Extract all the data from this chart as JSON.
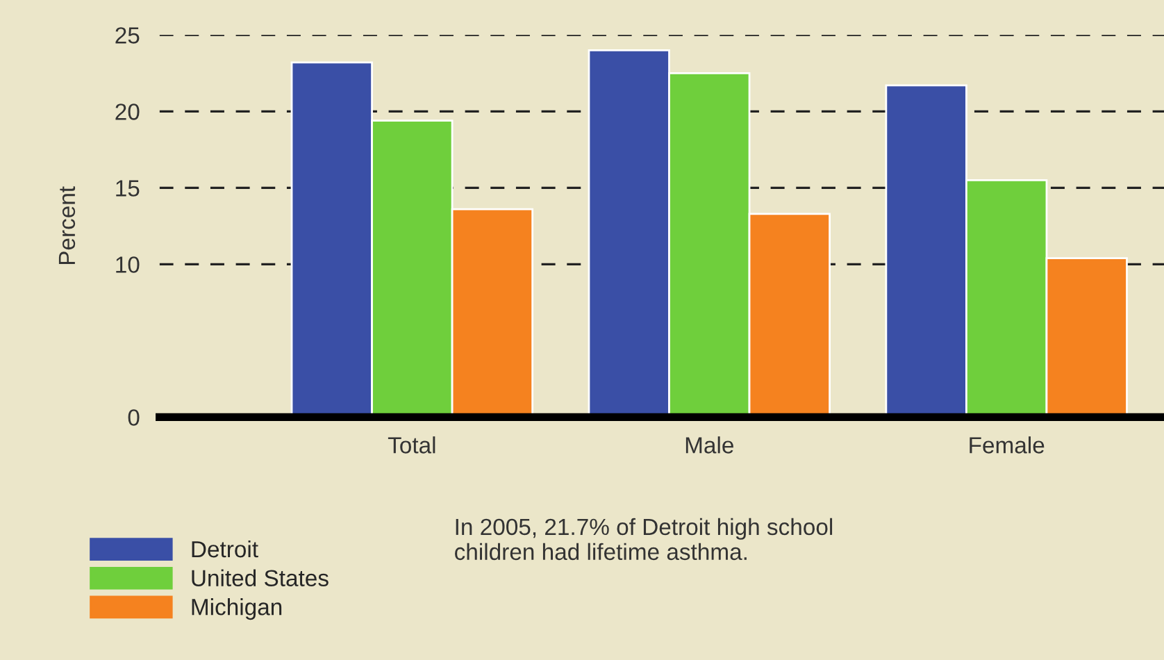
{
  "chart_data": {
    "type": "bar",
    "ylabel": "Percent",
    "categories": [
      "Total",
      "Male",
      "Female"
    ],
    "series": [
      {
        "name": "Detroit",
        "color": "#3a4fa6",
        "values": [
          23.2,
          24.0,
          21.7
        ]
      },
      {
        "name": "United States",
        "color": "#6fcf3c",
        "values": [
          19.4,
          22.5,
          15.5
        ]
      },
      {
        "name": "Michigan",
        "color": "#f5821f",
        "values": [
          13.6,
          13.3,
          10.4
        ]
      }
    ],
    "ylim": [
      0,
      25
    ],
    "yticks": [
      0,
      10,
      15,
      20,
      25
    ],
    "grid": "y",
    "legend": "bottom left",
    "annotations": [
      "In 2005, 21.7% of Detroit high school\nchildren had lifetime asthma."
    ]
  }
}
